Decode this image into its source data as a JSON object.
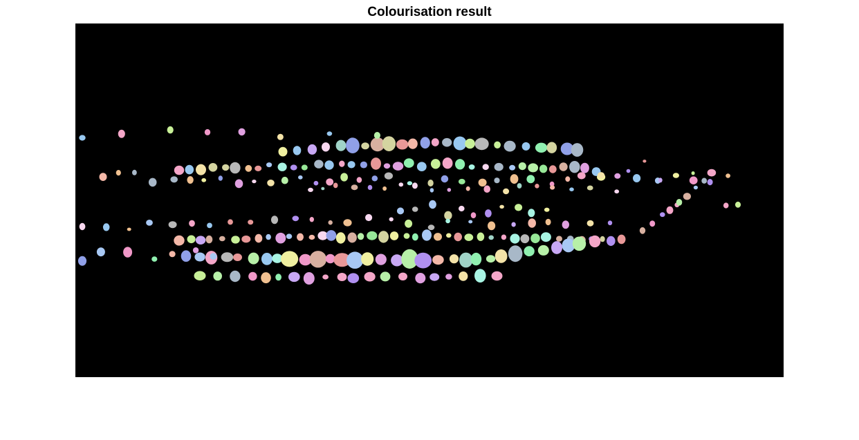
{
  "figure": {
    "title": "Colourisation result"
  },
  "image": {
    "background_color": "#000000",
    "description_kind": "colour-labelled segmentation regions on black background",
    "palette": [
      "#f4a6c8",
      "#b7f0a8",
      "#a8c8f4",
      "#f4e3a8",
      "#c8a8f4",
      "#a8f4e3",
      "#f4b8a8",
      "#d4d4a0",
      "#a0d4c8",
      "#e0a0e0",
      "#90a0e8",
      "#f0c090",
      "#b8b8b8",
      "#98e898",
      "#e89898",
      "#c8f098",
      "#98c8f0",
      "#f098c8",
      "#d8b0a0",
      "#a8b8c8",
      "#f8d8f0",
      "#b090f0",
      "#90f0b0",
      "#f0f0a0"
    ]
  }
}
